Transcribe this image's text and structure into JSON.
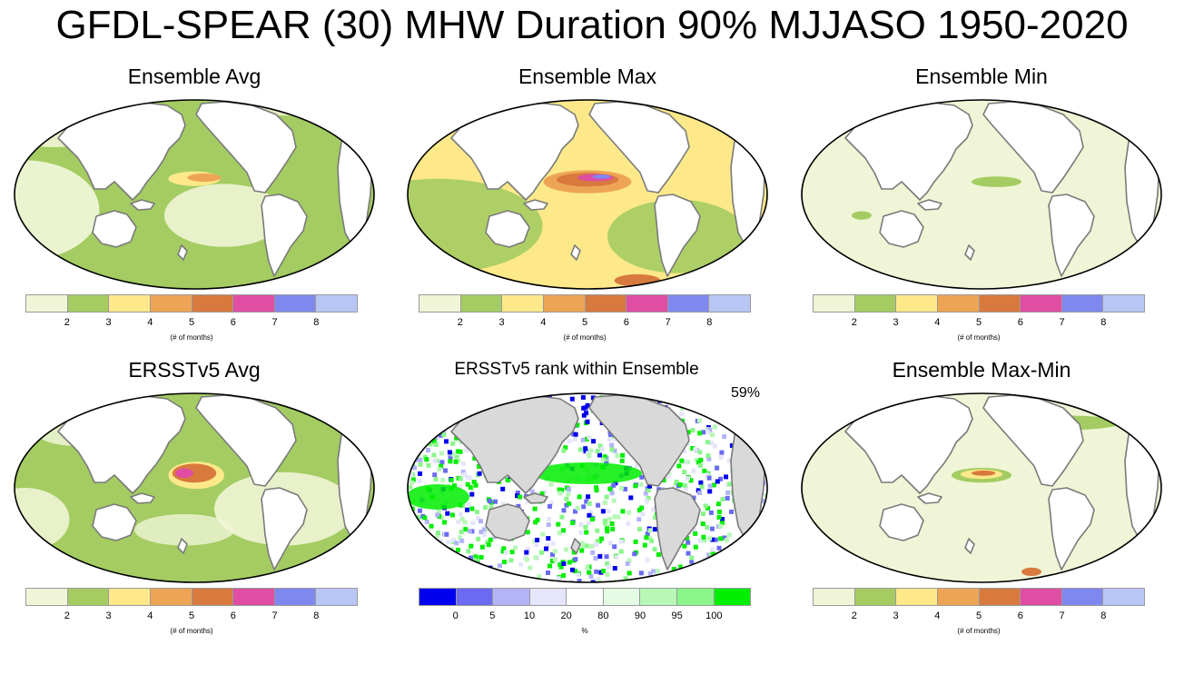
{
  "title": "GFDL-SPEAR (30) MHW Duration 90% MJJASO 1950-2020",
  "colors": {
    "land": "#ffffff",
    "land_gray": "#d9d9d9",
    "coast": "#7a7a7a",
    "outline": "#000000"
  },
  "duration_legend": {
    "colors": [
      "#eff5d6",
      "#a4cc62",
      "#fde98a",
      "#eda555",
      "#d8793e",
      "#df4ea3",
      "#7f88ee",
      "#b8c6f6"
    ],
    "ticks": [
      "2",
      "3",
      "4",
      "5",
      "6",
      "7",
      "8"
    ],
    "units": "(# of months)"
  },
  "rank_legend": {
    "colors": [
      "#0000ee",
      "#6a6af3",
      "#b3b3f8",
      "#e5e5fb",
      "#ffffff",
      "#e4fbe4",
      "#b7f8b7",
      "#8af58a",
      "#00ee00"
    ],
    "ticks": [
      "0",
      "5",
      "10",
      "20",
      "80",
      "90",
      "95",
      "100"
    ],
    "units": "%"
  },
  "panels": [
    {
      "title": "Ensemble Avg",
      "field": "avg"
    },
    {
      "title": "Ensemble Max",
      "field": "max"
    },
    {
      "title": "Ensemble Min",
      "field": "min"
    },
    {
      "title": "ERSSTv5 Avg",
      "field": "obs"
    },
    {
      "title": "ERSSTv5 rank within Ensemble",
      "field": "rank",
      "badge": "59%"
    },
    {
      "title": "Ensemble Max-Min",
      "field": "spread"
    }
  ]
}
